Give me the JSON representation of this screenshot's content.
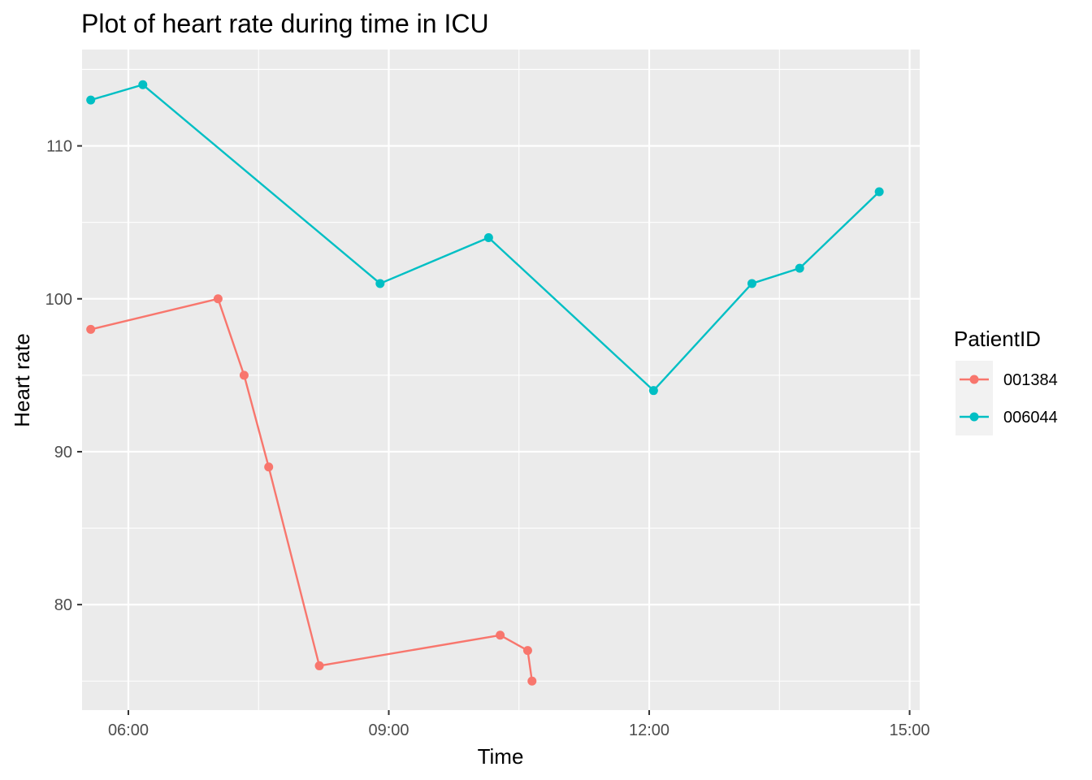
{
  "chart_data": {
    "type": "line",
    "title": "Plot of heart rate during time in ICU",
    "xlabel": "Time",
    "ylabel": "Heart rate",
    "x_ticks": [
      "06:00",
      "09:00",
      "12:00",
      "15:00"
    ],
    "y_ticks": [
      "80",
      "90",
      "100",
      "110"
    ],
    "xlim": [
      "05:28",
      "15:07"
    ],
    "ylim": [
      73.1,
      116.3
    ],
    "grid": true,
    "legend": {
      "title": "PatientID",
      "position": "right"
    },
    "series": [
      {
        "name": "001384",
        "color": "#F8766D",
        "x": [
          "05:34",
          "07:02",
          "07:20",
          "07:37",
          "08:12",
          "10:17",
          "10:36",
          "10:39"
        ],
        "y": [
          98,
          100,
          95,
          89,
          76,
          78,
          77,
          75
        ]
      },
      {
        "name": "006044",
        "color": "#00BFC4",
        "x": [
          "05:34",
          "06:10",
          "08:54",
          "10:09",
          "12:03",
          "13:11",
          "13:44",
          "14:39"
        ],
        "y": [
          113,
          114,
          101,
          104,
          94,
          101,
          102,
          107
        ]
      }
    ]
  }
}
